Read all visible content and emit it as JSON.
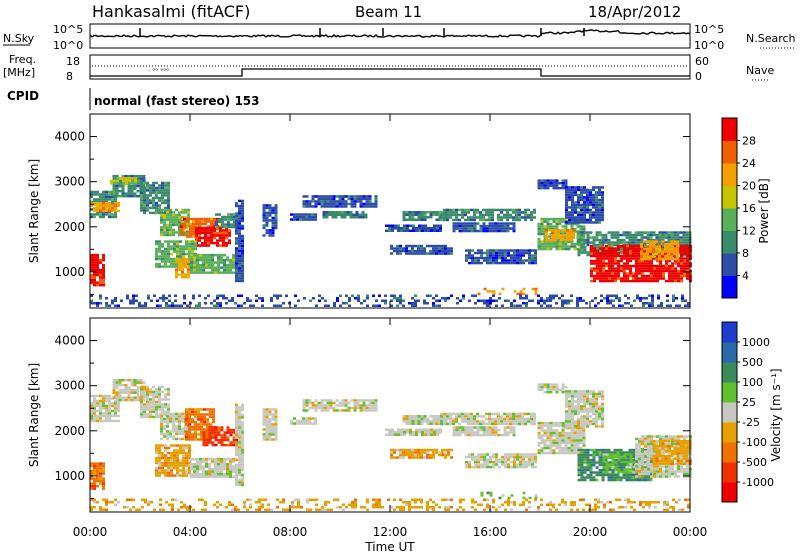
{
  "header": {
    "station": "Hankasalmi (fitACF)",
    "beam": "Beam 11",
    "date": "18/Apr/2012"
  },
  "top_panels": {
    "nsky_label": "N.Sky",
    "nsky_ticks": [
      "10^5",
      "10^0"
    ],
    "nsearch_label": "N.Search",
    "nsearch_ticks": [
      "10^5",
      "10^0"
    ],
    "freq_label": "Freq.",
    "freq_unit": "[MHz]",
    "freq_ticks": [
      "18",
      "8"
    ],
    "nave_label": "Nave",
    "nave_ticks": [
      "60",
      "0"
    ],
    "cpid_label": "CPID",
    "cpid_value": "normal (fast stereo) 153"
  },
  "chart_data": [
    {
      "type": "heatmap",
      "name": "power",
      "ylabel": "Slant Range [km]",
      "ylim": [
        200,
        4500
      ],
      "y_ticks": [
        "1000",
        "2000",
        "3000",
        "4000"
      ],
      "xlim": [
        0,
        24
      ],
      "x_ticks": [
        "00:00",
        "04:00",
        "08:00",
        "12:00",
        "16:00",
        "20:00",
        "00:00"
      ],
      "colorbar": {
        "label": "Power [dB]",
        "ticks": [
          "4",
          "8",
          "12",
          "16",
          "20",
          "24",
          "28"
        ],
        "colors": [
          "#0000ff",
          "#2c4ca8",
          "#3a8a6c",
          "#5ab05a",
          "#c8c400",
          "#f5a000",
          "#f06000",
          "#ee0000"
        ]
      },
      "patches": [
        {
          "t0": 0.0,
          "t1": 0.6,
          "r0": 700,
          "r1": 1400,
          "c": 7
        },
        {
          "t0": 0.0,
          "t1": 1.0,
          "r0": 2200,
          "r1": 2800,
          "c": 2
        },
        {
          "t0": 0.0,
          "t1": 1.2,
          "r0": 2350,
          "r1": 2550,
          "c": 5
        },
        {
          "t0": 0.9,
          "t1": 2.2,
          "r0": 2700,
          "r1": 3150,
          "c": 2
        },
        {
          "t0": 0.8,
          "t1": 1.8,
          "r0": 2950,
          "r1": 3100,
          "c": 4
        },
        {
          "t0": 2.0,
          "t1": 3.2,
          "r0": 2300,
          "r1": 3000,
          "c": 2
        },
        {
          "t0": 2.8,
          "t1": 4.0,
          "r0": 1800,
          "r1": 2400,
          "c": 3
        },
        {
          "t0": 3.6,
          "t1": 5.2,
          "r0": 1800,
          "r1": 2200,
          "c": 6
        },
        {
          "t0": 4.2,
          "t1": 5.6,
          "r0": 1600,
          "r1": 2000,
          "c": 7
        },
        {
          "t0": 2.6,
          "t1": 4.2,
          "r0": 1100,
          "r1": 1700,
          "c": 3
        },
        {
          "t0": 3.4,
          "t1": 4.0,
          "r0": 900,
          "r1": 1300,
          "c": 5
        },
        {
          "t0": 4.0,
          "t1": 5.8,
          "r0": 1000,
          "r1": 1400,
          "c": 3
        },
        {
          "t0": 5.0,
          "t1": 5.9,
          "r0": 2000,
          "r1": 2300,
          "c": 2
        },
        {
          "t0": 5.8,
          "t1": 6.1,
          "r0": 800,
          "r1": 2600,
          "c": 1
        },
        {
          "t0": 6.9,
          "t1": 7.5,
          "r0": 1800,
          "r1": 2500,
          "c": 1
        },
        {
          "t0": 8.0,
          "t1": 9.0,
          "r0": 2150,
          "r1": 2300,
          "c": 1
        },
        {
          "t0": 8.5,
          "t1": 11.5,
          "r0": 2450,
          "r1": 2700,
          "c": 1
        },
        {
          "t0": 9.3,
          "t1": 11.0,
          "r0": 2200,
          "r1": 2350,
          "c": 2
        },
        {
          "t0": 11.8,
          "t1": 14.0,
          "r0": 1900,
          "r1": 2050,
          "c": 1
        },
        {
          "t0": 12.5,
          "t1": 14.2,
          "r0": 2150,
          "r1": 2350,
          "c": 2
        },
        {
          "t0": 14.0,
          "t1": 17.8,
          "r0": 2150,
          "r1": 2400,
          "c": 2
        },
        {
          "t0": 14.5,
          "t1": 17.0,
          "r0": 1900,
          "r1": 2100,
          "c": 1
        },
        {
          "t0": 12.0,
          "t1": 14.5,
          "r0": 1400,
          "r1": 1600,
          "c": 1
        },
        {
          "t0": 15.0,
          "t1": 17.8,
          "r0": 1200,
          "r1": 1500,
          "c": 1
        },
        {
          "t0": 15.5,
          "t1": 17.8,
          "r0": 500,
          "r1": 650,
          "c": 5
        },
        {
          "t0": 17.9,
          "t1": 19.8,
          "r0": 1500,
          "r1": 2200,
          "c": 3
        },
        {
          "t0": 18.2,
          "t1": 19.4,
          "r0": 1700,
          "r1": 1950,
          "c": 5
        },
        {
          "t0": 17.9,
          "t1": 19.0,
          "r0": 2850,
          "r1": 3050,
          "c": 1
        },
        {
          "t0": 19.0,
          "t1": 20.5,
          "r0": 2100,
          "r1": 2900,
          "c": 1
        },
        {
          "t0": 19.5,
          "t1": 24.0,
          "r0": 1400,
          "r1": 1900,
          "c": 2
        },
        {
          "t0": 20.0,
          "t1": 24.0,
          "r0": 800,
          "r1": 1600,
          "c": 7
        },
        {
          "t0": 22.0,
          "t1": 23.5,
          "r0": 1300,
          "r1": 1700,
          "c": 5
        },
        {
          "t0": 0.0,
          "t1": 24.0,
          "r0": 250,
          "r1": 500,
          "c": 1
        }
      ]
    },
    {
      "type": "heatmap",
      "name": "velocity",
      "ylabel": "Slant Range [km]",
      "xlabel": "Time UT",
      "ylim": [
        200,
        4500
      ],
      "y_ticks": [
        "1000",
        "2000",
        "3000",
        "4000"
      ],
      "xlim": [
        0,
        24
      ],
      "x_ticks": [
        "00:00",
        "04:00",
        "08:00",
        "12:00",
        "16:00",
        "20:00",
        "00:00"
      ],
      "colorbar": {
        "label": "Velocity [m s⁻¹]",
        "ticks": [
          "1000",
          "500",
          "100",
          "25",
          "-25",
          "-100",
          "-500",
          "-1000"
        ],
        "colors": [
          "#1a3fd0",
          "#2a6aa8",
          "#3a8a5a",
          "#60c030",
          "#c8c8c0",
          "#e8a000",
          "#f07000",
          "#f03000",
          "#ee0000"
        ]
      },
      "patches": [
        {
          "t0": 0.0,
          "t1": 0.5,
          "r0": 700,
          "r1": 1300,
          "c": 6
        },
        {
          "t0": 0.0,
          "t1": 1.2,
          "r0": 2200,
          "r1": 2800,
          "c": 4
        },
        {
          "t0": 0.9,
          "t1": 2.2,
          "r0": 2700,
          "r1": 3150,
          "c": 4
        },
        {
          "t0": 2.0,
          "t1": 3.2,
          "r0": 2300,
          "r1": 3000,
          "c": 4
        },
        {
          "t0": 2.8,
          "t1": 4.0,
          "r0": 1800,
          "r1": 2400,
          "c": 4
        },
        {
          "t0": 3.8,
          "t1": 5.0,
          "r0": 1800,
          "r1": 2500,
          "c": 6
        },
        {
          "t0": 4.5,
          "t1": 5.9,
          "r0": 1700,
          "r1": 2100,
          "c": 7
        },
        {
          "t0": 2.6,
          "t1": 4.0,
          "r0": 1000,
          "r1": 1700,
          "c": 5
        },
        {
          "t0": 4.0,
          "t1": 5.8,
          "r0": 1000,
          "r1": 1400,
          "c": 4
        },
        {
          "t0": 5.8,
          "t1": 6.1,
          "r0": 800,
          "r1": 2600,
          "c": 4
        },
        {
          "t0": 6.9,
          "t1": 7.5,
          "r0": 1800,
          "r1": 2500,
          "c": 4
        },
        {
          "t0": 8.0,
          "t1": 9.0,
          "r0": 2150,
          "r1": 2300,
          "c": 4
        },
        {
          "t0": 8.5,
          "t1": 11.5,
          "r0": 2450,
          "r1": 2700,
          "c": 4
        },
        {
          "t0": 11.8,
          "t1": 14.0,
          "r0": 1900,
          "r1": 2050,
          "c": 4
        },
        {
          "t0": 12.5,
          "t1": 14.2,
          "r0": 2150,
          "r1": 2350,
          "c": 4
        },
        {
          "t0": 14.0,
          "t1": 17.8,
          "r0": 2150,
          "r1": 2400,
          "c": 4
        },
        {
          "t0": 14.5,
          "t1": 17.0,
          "r0": 1900,
          "r1": 2100,
          "c": 4
        },
        {
          "t0": 12.0,
          "t1": 14.5,
          "r0": 1400,
          "r1": 1600,
          "c": 5
        },
        {
          "t0": 15.0,
          "t1": 17.8,
          "r0": 1200,
          "r1": 1500,
          "c": 4
        },
        {
          "t0": 15.5,
          "t1": 17.8,
          "r0": 500,
          "r1": 650,
          "c": 3
        },
        {
          "t0": 17.9,
          "t1": 19.8,
          "r0": 1500,
          "r1": 2200,
          "c": 4
        },
        {
          "t0": 17.9,
          "t1": 19.0,
          "r0": 2850,
          "r1": 3050,
          "c": 4
        },
        {
          "t0": 19.0,
          "t1": 20.5,
          "r0": 2100,
          "r1": 2900,
          "c": 4
        },
        {
          "t0": 19.5,
          "t1": 22.5,
          "r0": 900,
          "r1": 1600,
          "c": 2
        },
        {
          "t0": 20.5,
          "t1": 21.8,
          "r0": 1100,
          "r1": 1500,
          "c": 3
        },
        {
          "t0": 21.8,
          "t1": 24.0,
          "r0": 1000,
          "r1": 1900,
          "c": 4
        },
        {
          "t0": 22.5,
          "t1": 24.0,
          "r0": 1300,
          "r1": 1800,
          "c": 5
        },
        {
          "t0": 0.0,
          "t1": 24.0,
          "r0": 250,
          "r1": 500,
          "c": 5
        }
      ]
    }
  ]
}
